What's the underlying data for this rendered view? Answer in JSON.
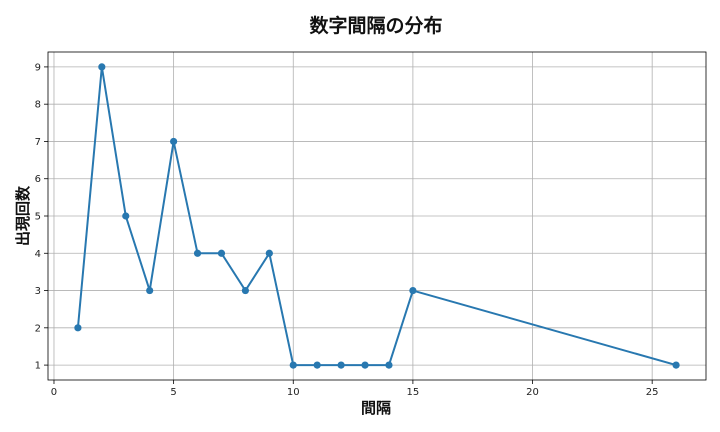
{
  "chart_data": {
    "type": "line",
    "title": "数字間隔の分布",
    "xlabel": "間隔",
    "ylabel": "出現回数",
    "x": [
      1,
      2,
      3,
      4,
      5,
      6,
      7,
      8,
      9,
      10,
      11,
      12,
      13,
      14,
      15,
      26
    ],
    "y": [
      2,
      9,
      5,
      3,
      7,
      4,
      4,
      3,
      4,
      1,
      1,
      1,
      1,
      1,
      3,
      1
    ],
    "xlim": [
      -0.25,
      27.25
    ],
    "ylim": [
      0.6,
      9.4
    ],
    "xticks": [
      "0",
      "5",
      "10",
      "15",
      "20",
      "25"
    ],
    "yticks": [
      "1",
      "2",
      "3",
      "4",
      "5",
      "6",
      "7",
      "8",
      "9"
    ],
    "grid": true,
    "colors": {
      "line": "#2878b0",
      "grid": "#b0b0b0",
      "frame": "#000000"
    }
  }
}
